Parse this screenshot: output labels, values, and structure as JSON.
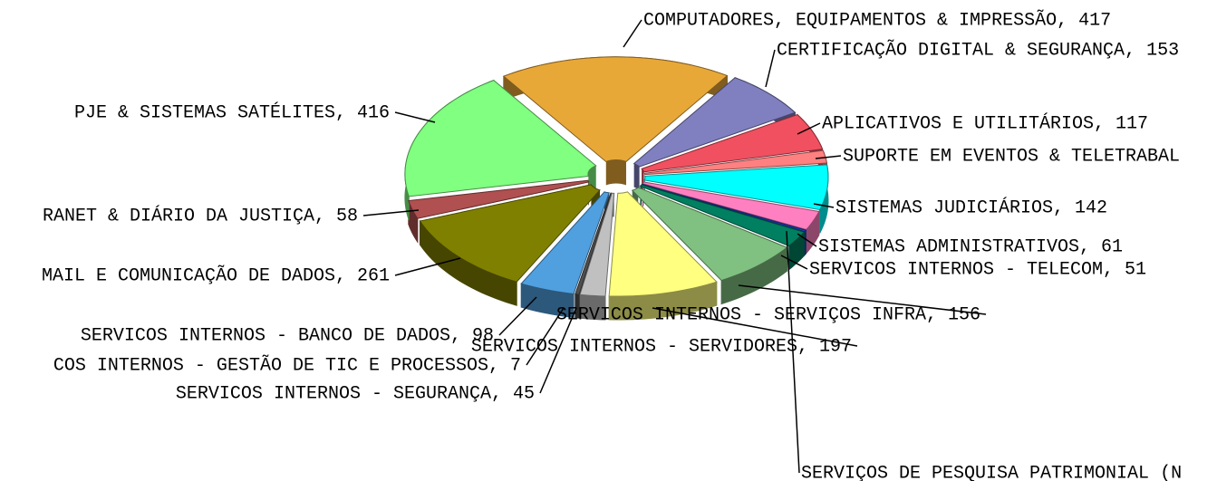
{
  "chart_data": {
    "type": "pie",
    "labels": [
      "COMPUTADORES, EQUIPAMENTOS & IMPRESSÃO, 417",
      "CERTIFICAÇÃO DIGITAL & SEGURANÇA, 153",
      "APLICATIVOS E UTILITÁRIOS, 117",
      "SUPORTE EM EVENTOS & TELETRABAL",
      "SISTEMAS JUDICIÁRIOS, 142",
      "SISTEMAS ADMINISTRATIVOS, 61",
      "SERVIÇOS DE PESQUISA PATRIMONIAL (N",
      "SERVICOS INTERNOS - TELECOM, 51",
      "SERVICOS INTERNOS - SERVIÇOS INFRA, 156",
      "SERVICOS INTERNOS - SERVIDORES, 197",
      "SERVICOS INTERNOS - SEGURANÇA, 45",
      "COS INTERNOS - GESTÃO DE TIC E PROCESSOS, 7",
      "SERVICOS INTERNOS - BANCO DE DADOS, 98",
      "MAIL E COMUNICAÇÃO DE DADOS, 261",
      "RANET & DIÁRIO DA JUSTIÇA, 58",
      "PJE & SISTEMAS SATÉLITES, 416"
    ],
    "values": [
      417,
      153,
      117,
      40,
      142,
      61,
      5,
      51,
      156,
      197,
      45,
      7,
      98,
      261,
      58,
      416
    ],
    "colors": [
      "#e8a838",
      "#8080c0",
      "#f05060",
      "#ff8080",
      "#00ffff",
      "#ff80c0",
      "#2040c0",
      "#008060",
      "#80c080",
      "#ffff80",
      "#c0c0c0",
      "#505050",
      "#50a0e0",
      "#808000",
      "#b05050",
      "#80ff80"
    ]
  }
}
